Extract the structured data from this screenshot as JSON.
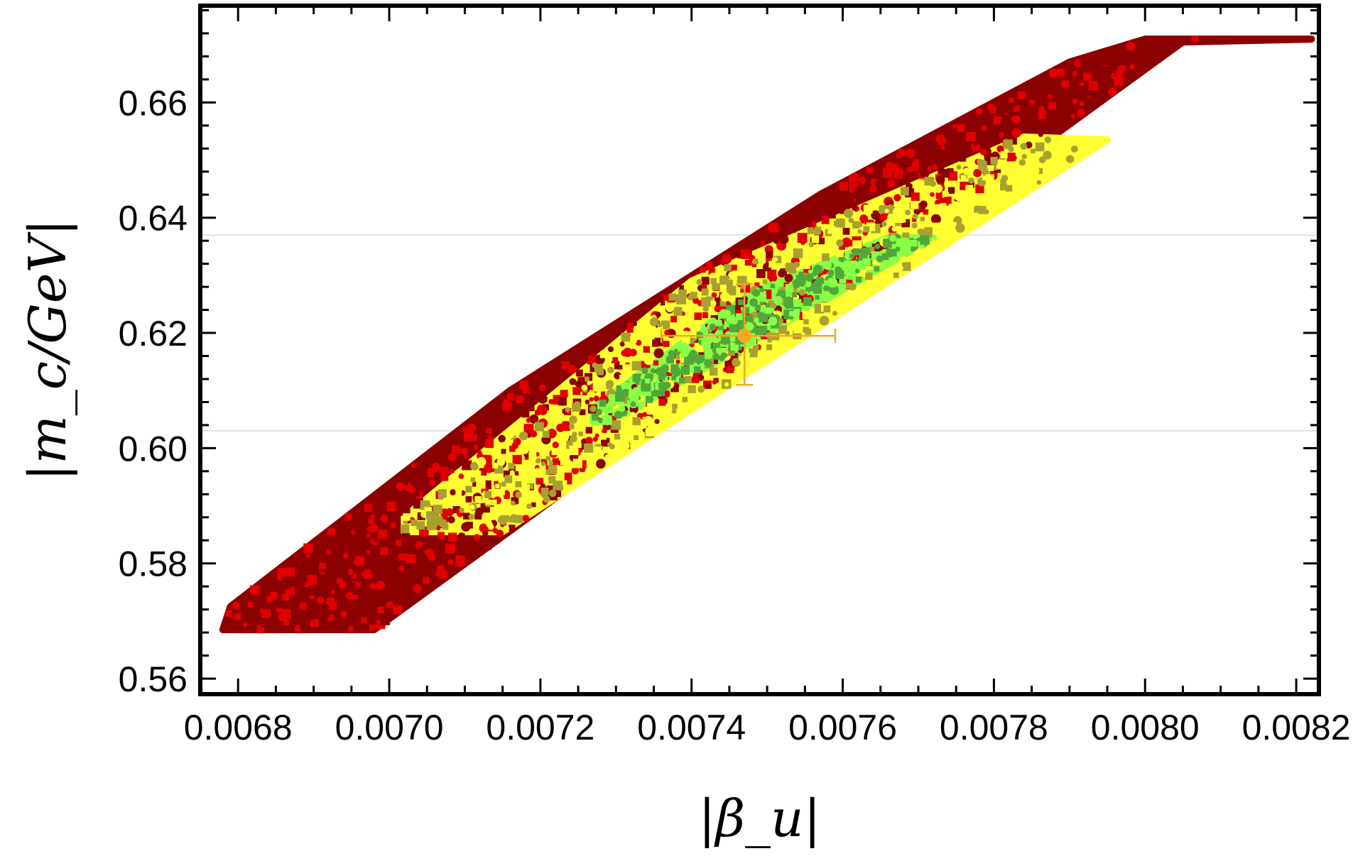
{
  "chart_data": {
    "type": "scatter",
    "xlabel": "|β_u|",
    "ylabel": "|m_c/GeV|",
    "xlim": [
      0.00675,
      0.00823
    ],
    "ylim": [
      0.5573,
      0.6768
    ],
    "x_ticks": [
      "0.0068",
      "0.0070",
      "0.0072",
      "0.0074",
      "0.0076",
      "0.0078",
      "0.0080",
      "0.0082"
    ],
    "x_tick_values": [
      0.0068,
      0.007,
      0.0072,
      0.0074,
      0.0076,
      0.0078,
      0.008,
      0.0082
    ],
    "y_ticks": [
      "0.56",
      "0.58",
      "0.60",
      "0.62",
      "0.64",
      "0.66"
    ],
    "y_tick_values": [
      0.56,
      0.58,
      0.6,
      0.62,
      0.64,
      0.66
    ],
    "reference_lines_y": [
      0.603,
      0.637
    ],
    "grid": false,
    "legend": "none",
    "series": [
      {
        "color": "#8b0000",
        "highlight": "#e00000",
        "region": [
          [
            0.00678,
            0.5685
          ],
          [
            0.00698,
            0.5685
          ],
          [
            0.00805,
            0.6705
          ],
          [
            0.00822,
            0.671
          ],
          [
            0.008,
            0.671
          ],
          [
            0.0079,
            0.667
          ],
          [
            0.00757,
            0.644
          ],
          [
            0.00716,
            0.61
          ],
          [
            0.00679,
            0.5725
          ]
        ]
      },
      {
        "color": "#ffff33",
        "highlight": "#a8a030",
        "region": [
          [
            0.00702,
            0.5855
          ],
          [
            0.00715,
            0.5855
          ],
          [
            0.00795,
            0.6535
          ],
          [
            0.00784,
            0.654
          ],
          [
            0.0074,
            0.629
          ],
          [
            0.00702,
            0.588
          ]
        ]
      },
      {
        "color": "#88ff44",
        "highlight": "#4ea83a",
        "region": [
          [
            0.00727,
            0.6045
          ],
          [
            0.0073,
            0.605
          ],
          [
            0.00772,
            0.6365
          ],
          [
            0.00766,
            0.6365
          ],
          [
            0.00748,
            0.627
          ],
          [
            0.00727,
            0.607
          ]
        ]
      }
    ],
    "best_fit": {
      "x": 0.00747,
      "y": 0.6195,
      "x_err": [
        0.00736,
        0.00759
      ],
      "y_err": [
        0.611,
        0.6285
      ],
      "color": "#f5a623"
    }
  }
}
